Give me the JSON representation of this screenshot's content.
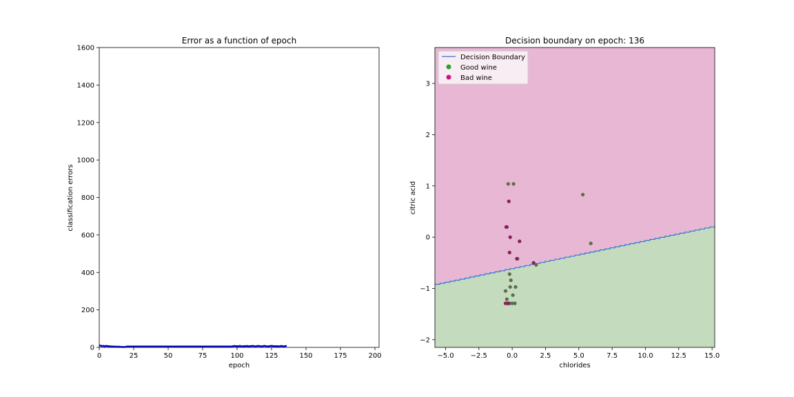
{
  "chart_data": [
    {
      "type": "line",
      "title": "Error as a function of epoch",
      "xlabel": "epoch",
      "ylabel": "classification errors",
      "xlim": [
        0,
        203
      ],
      "ylim": [
        0,
        1600
      ],
      "xticks": [
        "0",
        "25",
        "50",
        "75",
        "100",
        "125",
        "150",
        "175",
        "200"
      ],
      "yticks": [
        "0",
        "200",
        "400",
        "600",
        "800",
        "1000",
        "1200",
        "1400",
        "1600"
      ],
      "series": [
        {
          "color": "#0000cc",
          "x": [
            0,
            1,
            2,
            3,
            4,
            5,
            6,
            7,
            8,
            9,
            10,
            11,
            12,
            13,
            14,
            15,
            16,
            17,
            18,
            19,
            20,
            21,
            22,
            23,
            24,
            25,
            26,
            27,
            28,
            29,
            30,
            31,
            32,
            33,
            34,
            35,
            36,
            37,
            38,
            39,
            40,
            41,
            42,
            43,
            44,
            45,
            46,
            47,
            48,
            49,
            50,
            51,
            52,
            53,
            54,
            55,
            56,
            57,
            58,
            59,
            60,
            61,
            62,
            63,
            64,
            65,
            66,
            67,
            68,
            69,
            70,
            71,
            72,
            73,
            74,
            75,
            76,
            77,
            78,
            79,
            80,
            81,
            82,
            83,
            84,
            85,
            86,
            87,
            88,
            89,
            90,
            91,
            92,
            93,
            94,
            95,
            96,
            97,
            98,
            99,
            100,
            101,
            102,
            103,
            104,
            105,
            106,
            107,
            108,
            109,
            110,
            111,
            112,
            113,
            114,
            115,
            116,
            117,
            118,
            119,
            120,
            121,
            122,
            123,
            124,
            125,
            126,
            127,
            128,
            129,
            130,
            131,
            132,
            133,
            134,
            135,
            136
          ],
          "values": [
            11,
            9,
            7,
            8,
            6,
            8,
            7,
            6,
            5,
            5,
            4,
            4,
            4,
            3,
            4,
            3,
            3,
            2,
            2,
            3,
            4,
            5,
            4,
            5,
            4,
            5,
            4,
            5,
            4,
            5,
            4,
            5,
            4,
            5,
            4,
            5,
            4,
            5,
            4,
            5,
            4,
            5,
            4,
            5,
            4,
            5,
            4,
            5,
            4,
            5,
            4,
            5,
            4,
            5,
            4,
            5,
            4,
            5,
            4,
            5,
            4,
            5,
            4,
            5,
            4,
            5,
            4,
            5,
            4,
            5,
            4,
            5,
            4,
            5,
            4,
            5,
            4,
            5,
            4,
            5,
            4,
            5,
            4,
            5,
            4,
            5,
            4,
            5,
            4,
            5,
            4,
            5,
            4,
            5,
            4,
            5,
            4,
            6,
            8,
            6,
            7,
            5,
            8,
            6,
            5,
            7,
            6,
            8,
            5,
            7,
            6,
            8,
            7,
            5,
            6,
            8,
            7,
            6,
            5,
            7,
            8,
            6,
            5,
            6,
            7,
            8,
            7,
            6,
            6,
            7,
            5,
            6,
            8,
            6,
            5,
            7,
            8
          ]
        }
      ]
    },
    {
      "type": "scatter",
      "title": "Decision boundary on epoch: 136",
      "xlabel": "chlorides",
      "ylabel": "citric acid",
      "xlim": [
        -5.8,
        15.2
      ],
      "ylim": [
        -2.15,
        3.7
      ],
      "xticks": [
        "−5.0",
        "−2.5",
        "0.0",
        "2.5",
        "5.0",
        "7.5",
        "10.0",
        "12.5",
        "15.0"
      ],
      "yticks": [
        "−2",
        "−1",
        "0",
        "1",
        "2",
        "3"
      ],
      "legend_position": "upper-left",
      "boundary": {
        "name": "Decision Boundary",
        "color": "#3a6fd8",
        "x": [
          -5.8,
          15.2
        ],
        "y": [
          -0.92,
          0.22
        ],
        "above_region_color": "#e8b7d4",
        "below_region_color": "#c5dbbd"
      },
      "series": [
        {
          "name": "Good wine",
          "color": "#2ca02c",
          "x": [
            -0.3,
            0.1,
            5.3,
            5.9,
            0.4,
            1.8,
            -0.2,
            -0.1,
            0.25,
            -0.5,
            0.05,
            -0.4,
            -0.35,
            -0.2,
            0.0,
            0.2,
            -0.15
          ],
          "y": [
            1.04,
            1.04,
            0.83,
            -0.12,
            -0.42,
            -0.54,
            -0.72,
            -0.84,
            -0.97,
            -1.05,
            -1.13,
            -1.21,
            -1.29,
            -1.29,
            -1.29,
            -1.29,
            -0.97
          ]
        },
        {
          "name": "Bad wine",
          "color": "#c71585",
          "x": [
            -0.25,
            -0.4,
            -0.45,
            -0.15,
            0.55,
            -0.2,
            1.6,
            0.35,
            -0.3,
            -0.5
          ],
          "y": [
            0.7,
            0.2,
            0.2,
            0.0,
            -0.08,
            -0.3,
            -0.5,
            -0.42,
            -1.29,
            -1.29
          ]
        }
      ]
    }
  ]
}
